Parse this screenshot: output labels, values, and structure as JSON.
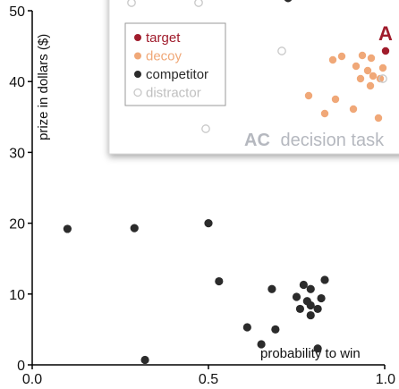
{
  "chart_data": {
    "type": "scatter",
    "xlabel": "probability to win",
    "ylabel": "prize in dollars ($)",
    "xlim": [
      0.0,
      1.0
    ],
    "ylim": [
      0,
      50
    ],
    "x_ticks": [
      "0.0",
      "0.5",
      "1.0"
    ],
    "y_ticks": [
      "0",
      "10",
      "20",
      "30",
      "40",
      "50"
    ],
    "grid": false,
    "series": [
      {
        "name": "competitor",
        "color": "#2b2b2b",
        "points": [
          {
            "x": 0.1,
            "y": 19.2
          },
          {
            "x": 0.29,
            "y": 19.3
          },
          {
            "x": 0.5,
            "y": 20.0
          },
          {
            "x": 0.53,
            "y": 11.8
          },
          {
            "x": 0.68,
            "y": 10.7
          },
          {
            "x": 0.77,
            "y": 11.3
          },
          {
            "x": 0.79,
            "y": 10.7
          },
          {
            "x": 0.83,
            "y": 12.0
          },
          {
            "x": 0.75,
            "y": 9.6
          },
          {
            "x": 0.78,
            "y": 9.0
          },
          {
            "x": 0.82,
            "y": 9.4
          },
          {
            "x": 0.76,
            "y": 7.9
          },
          {
            "x": 0.79,
            "y": 8.4
          },
          {
            "x": 0.81,
            "y": 7.9
          },
          {
            "x": 0.79,
            "y": 7.0
          },
          {
            "x": 0.61,
            "y": 5.3
          },
          {
            "x": 0.69,
            "y": 5.0
          },
          {
            "x": 0.65,
            "y": 2.9
          },
          {
            "x": 0.81,
            "y": 2.3
          },
          {
            "x": 0.32,
            "y": 0.7
          }
        ]
      }
    ],
    "inset": {
      "caption_bold": "AC",
      "caption_rest": "decision task",
      "panel_letter": "A",
      "legend": [
        {
          "label": "target",
          "color": "#a01c2c",
          "style": "filled"
        },
        {
          "label": "decoy",
          "color": "#f0a878",
          "style": "filled"
        },
        {
          "label": "competitor",
          "color": "#2b2b2b",
          "style": "filled"
        },
        {
          "label": "distractor",
          "color": "#c8c8c8",
          "style": "hollow"
        }
      ]
    }
  }
}
